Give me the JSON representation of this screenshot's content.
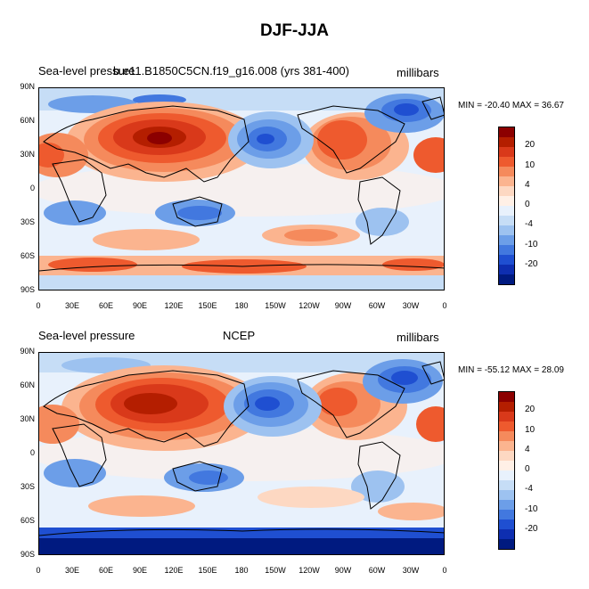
{
  "title": "DJF-JJA",
  "panels": [
    {
      "left_label": "Sea-level pressure",
      "center_label": "b.e11.B1850C5CN.f19_g16.008 (yrs 381-400)",
      "right_label": "millibars",
      "stats": "MIN = -20.40 MAX =  36.67",
      "style": "model"
    },
    {
      "left_label": "Sea-level pressure",
      "center_label": "NCEP",
      "right_label": "millibars",
      "stats": "MIN = -55.12 MAX =  28.09",
      "style": "obs"
    }
  ],
  "lat_ticks": [
    "90N",
    "60N",
    "30N",
    "0",
    "30S",
    "60S",
    "90S"
  ],
  "lon_ticks": [
    "0",
    "30E",
    "60E",
    "90E",
    "120E",
    "150E",
    "180",
    "150W",
    "120W",
    "90W",
    "60W",
    "30W",
    "0"
  ],
  "colorbar": {
    "labels": [
      "20",
      "10",
      "4",
      "0",
      "-4",
      "-10",
      "-20"
    ],
    "colors": [
      "#8c0000",
      "#b41e00",
      "#d9391a",
      "#ee5a2e",
      "#f58a5c",
      "#fbb48f",
      "#fdd8c2",
      "#fff0e6",
      "#e8f1fc",
      "#c6ddf6",
      "#9dc2f0",
      "#6c9ee8",
      "#4278df",
      "#1f4fd1",
      "#0e2eb0",
      "#001a80"
    ]
  }
}
